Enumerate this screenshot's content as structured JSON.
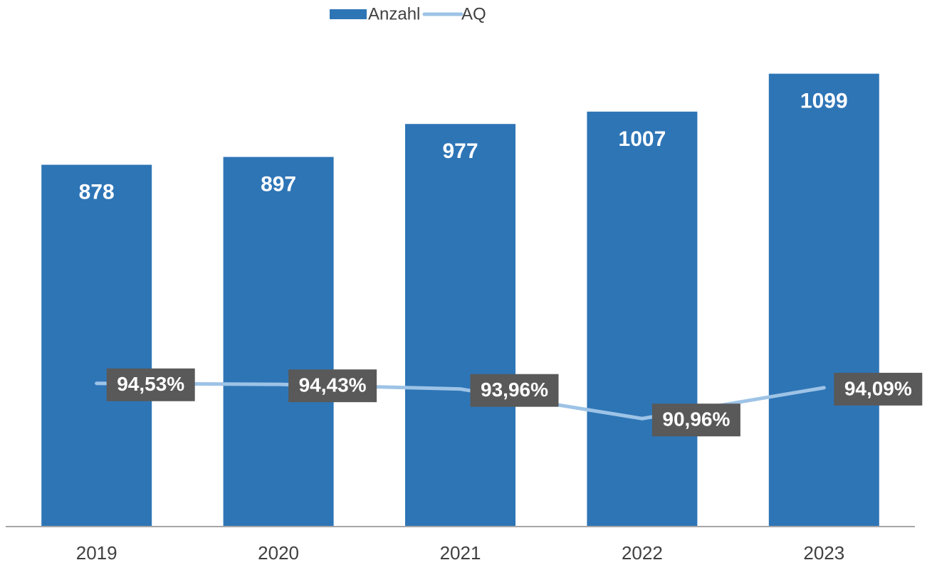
{
  "chart_data": {
    "type": "bar",
    "categories": [
      "2019",
      "2020",
      "2021",
      "2022",
      "2023"
    ],
    "series": [
      {
        "name": "Anzahl",
        "type": "bar",
        "color": "#2e75b6",
        "values": [
          878,
          897,
          977,
          1007,
          1099
        ]
      },
      {
        "name": "AQ",
        "type": "line",
        "axis": "y2",
        "color": "#9dc3e6",
        "values": [
          94.53,
          94.43,
          93.96,
          90.96,
          94.09
        ],
        "value_labels": [
          "94,53%",
          "94,43%",
          "93,96%",
          "90,96%",
          "94,09%"
        ]
      }
    ],
    "ylim": [
      0,
      1100
    ],
    "y2lim": [
      80,
      126
    ],
    "legend": "top"
  }
}
